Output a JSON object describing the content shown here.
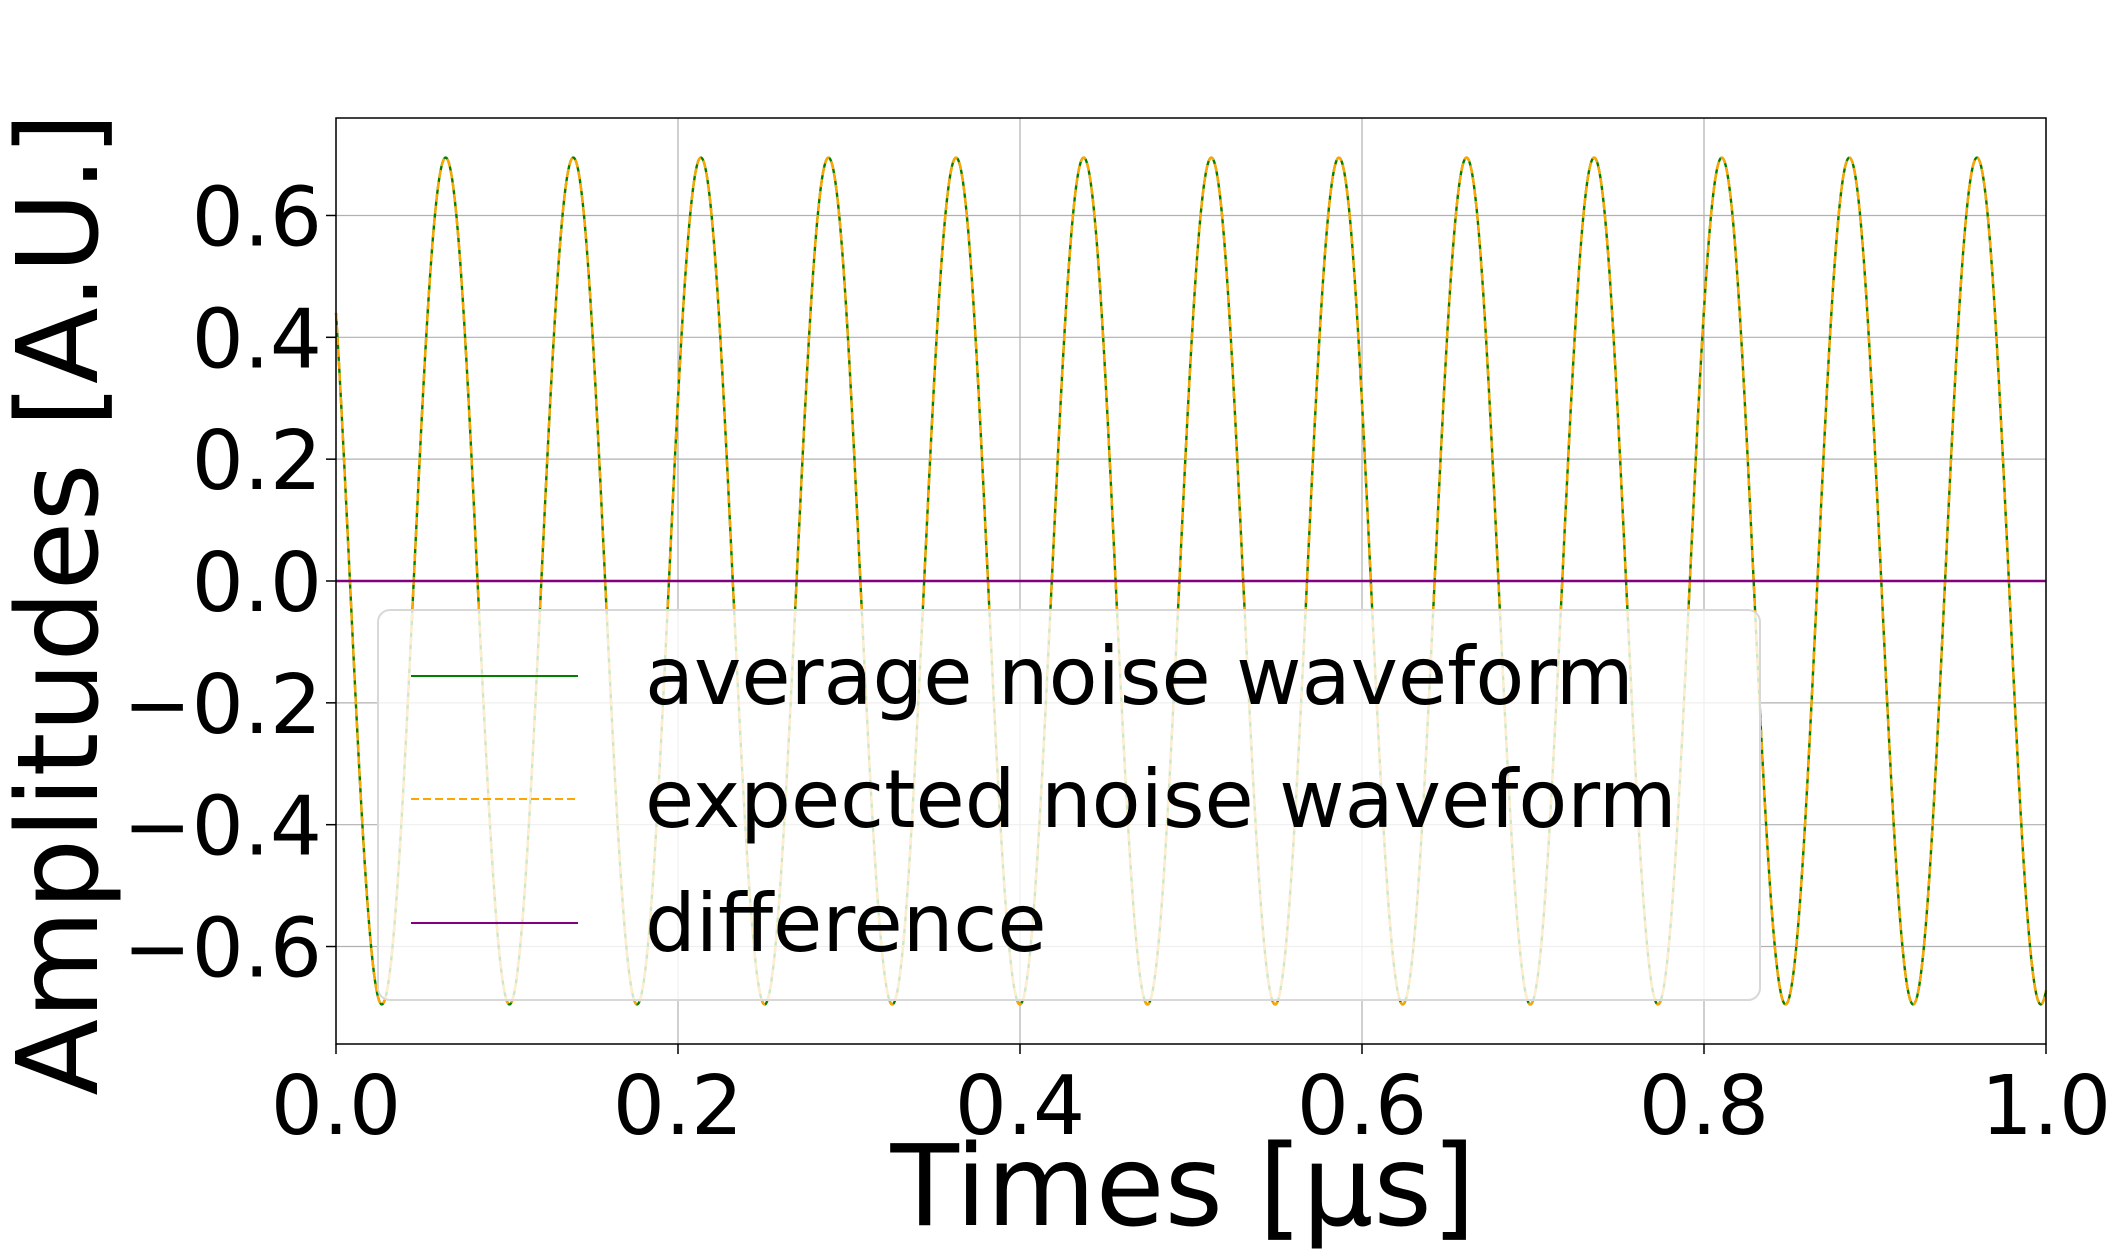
{
  "chart_data": {
    "type": "line",
    "title": "",
    "xlabel": "Times [μs]",
    "ylabel": "Amplitudes [A.U.]",
    "xlim": [
      0.0,
      1.0
    ],
    "ylim": [
      -0.76,
      0.76
    ],
    "x_ticks": [
      0.0,
      0.2,
      0.4,
      0.6,
      0.8,
      1.0
    ],
    "x_tick_labels": [
      "0.0",
      "0.2",
      "0.4",
      "0.6",
      "0.8",
      "1.0"
    ],
    "y_ticks": [
      -0.6,
      -0.4,
      -0.2,
      0.0,
      0.2,
      0.4,
      0.6
    ],
    "y_tick_labels": [
      "−0.6",
      "−0.4",
      "−0.2",
      "0.0",
      "0.2",
      "0.4",
      "0.6"
    ],
    "grid": true,
    "legend_position": "lower-left",
    "series": [
      {
        "name": "average noise waveform",
        "color": "#008000",
        "style": "solid",
        "function": "sine",
        "amplitude": 0.695,
        "frequency_per_us": 13.4,
        "value_at_x0": 0.44,
        "initial_direction": "decreasing"
      },
      {
        "name": "expected noise waveform",
        "color": "#ffa500",
        "style": "dashed",
        "function": "sine",
        "amplitude": 0.695,
        "frequency_per_us": 13.4,
        "value_at_x0": 0.44,
        "initial_direction": "decreasing"
      },
      {
        "name": "difference",
        "color": "#800080",
        "style": "solid",
        "function": "constant",
        "value": 0.0
      }
    ]
  }
}
